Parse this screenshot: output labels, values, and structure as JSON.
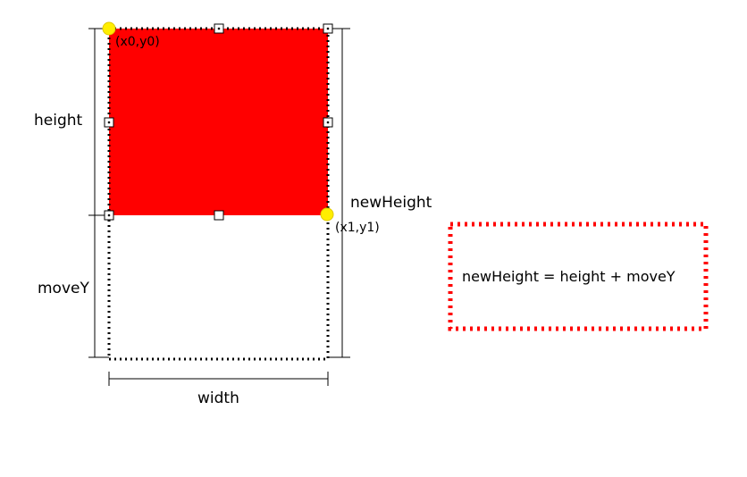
{
  "labels": {
    "height": "height",
    "moveY": "moveY",
    "newHeight": "newHeight",
    "width": "width",
    "p0": "(x0,y0)",
    "p1": "(x1,y1)"
  },
  "formula": "newHeight = height + moveY",
  "colors": {
    "rect_fill": "#ff0000",
    "formula_border": "#ff0000",
    "point_marker": "#ffee00",
    "dotted_outline": "#000000",
    "dimension_line": "#000000"
  }
}
